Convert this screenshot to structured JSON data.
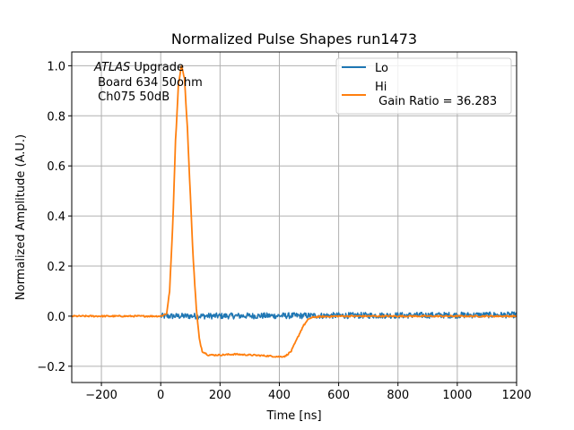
{
  "chart_data": {
    "type": "line",
    "title": "Normalized Pulse Shapes run1473",
    "xlabel": "Time [ns]",
    "ylabel": "Normalized Amplitude (A.U.)",
    "xlim": [
      -300,
      1200
    ],
    "ylim": [
      -0.265,
      1.055
    ],
    "xticks": [
      -200,
      0,
      200,
      400,
      600,
      800,
      1000,
      1200
    ],
    "xtick_labels": [
      "−200",
      "0",
      "200",
      "400",
      "600",
      "800",
      "1000",
      "1200"
    ],
    "yticks": [
      -0.2,
      0.0,
      0.2,
      0.4,
      0.6,
      0.8,
      1.0
    ],
    "ytick_labels": [
      "−0.2",
      "0.0",
      "0.2",
      "0.4",
      "0.6",
      "0.8",
      "1.0"
    ],
    "grid": true,
    "legend_position": "top-right",
    "annotation": {
      "italic": "ATLAS",
      "line1_rest": " Upgrade",
      "line2": " Board 634 50ohm",
      "line3": " Ch075 50dB"
    },
    "series": [
      {
        "name": "Lo",
        "legend_label": "Lo",
        "color": "#1f77b4",
        "noise_amplitude": 0.012,
        "x_range": [
          0,
          1200
        ],
        "points": [
          [
            0,
            0.0
          ],
          [
            1200,
            0.005
          ]
        ]
      },
      {
        "name": "Hi",
        "legend_label": "Hi",
        "legend_sublabel": " Gain Ratio = 36.283",
        "color": "#ff7f0e",
        "noise_amplitude": 0.003,
        "points": [
          [
            -300,
            0.0
          ],
          [
            -200,
            0.0
          ],
          [
            -100,
            0.0
          ],
          [
            0,
            0.0
          ],
          [
            20,
            0.01
          ],
          [
            30,
            0.1
          ],
          [
            40,
            0.35
          ],
          [
            50,
            0.7
          ],
          [
            60,
            0.93
          ],
          [
            70,
            1.0
          ],
          [
            80,
            0.95
          ],
          [
            90,
            0.75
          ],
          [
            100,
            0.48
          ],
          [
            110,
            0.22
          ],
          [
            120,
            0.03
          ],
          [
            130,
            -0.09
          ],
          [
            140,
            -0.14
          ],
          [
            160,
            -0.155
          ],
          [
            200,
            -0.155
          ],
          [
            250,
            -0.152
          ],
          [
            300,
            -0.155
          ],
          [
            350,
            -0.158
          ],
          [
            400,
            -0.162
          ],
          [
            420,
            -0.16
          ],
          [
            440,
            -0.14
          ],
          [
            460,
            -0.09
          ],
          [
            480,
            -0.04
          ],
          [
            500,
            -0.01
          ],
          [
            520,
            -0.003
          ],
          [
            600,
            0.0
          ],
          [
            800,
            0.0
          ],
          [
            1000,
            0.0
          ],
          [
            1200,
            0.0
          ]
        ]
      }
    ]
  }
}
